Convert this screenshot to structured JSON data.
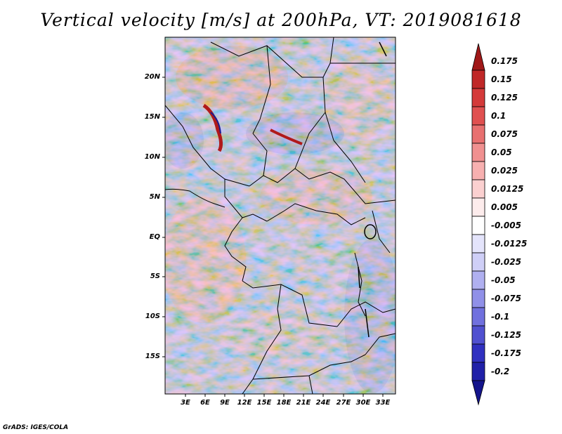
{
  "title": "Vertical velocity [m/s] at 200hPa, VT: 2019081618",
  "credit": "GrADS: IGES/COLA",
  "lat_labels": [
    "20N",
    "15N",
    "10N",
    "5N",
    "EQ",
    "5S",
    "10S",
    "15S"
  ],
  "lon_labels": [
    "3E",
    "6E",
    "9E",
    "12E",
    "15E",
    "18E",
    "21E",
    "24E",
    "27E",
    "30E",
    "33E"
  ],
  "colorbar": {
    "levels": [
      "0.175",
      "0.15",
      "0.125",
      "0.1",
      "0.075",
      "0.05",
      "0.025",
      "0.0125",
      "0.005",
      "-0.005",
      "-0.0125",
      "-0.025",
      "-0.05",
      "-0.075",
      "-0.1",
      "-0.125",
      "-0.175",
      "-0.2"
    ],
    "colors": [
      "#a01818",
      "#c02828",
      "#d43a3a",
      "#e05050",
      "#e87070",
      "#f09090",
      "#f7b0b0",
      "#fbd0d0",
      "#fdecec",
      "#ffffff",
      "#e4e4fb",
      "#cfcff7",
      "#b0b0f0",
      "#9090e8",
      "#7070de",
      "#5050d0",
      "#3030c0",
      "#2020a8",
      "#14148c"
    ]
  }
}
